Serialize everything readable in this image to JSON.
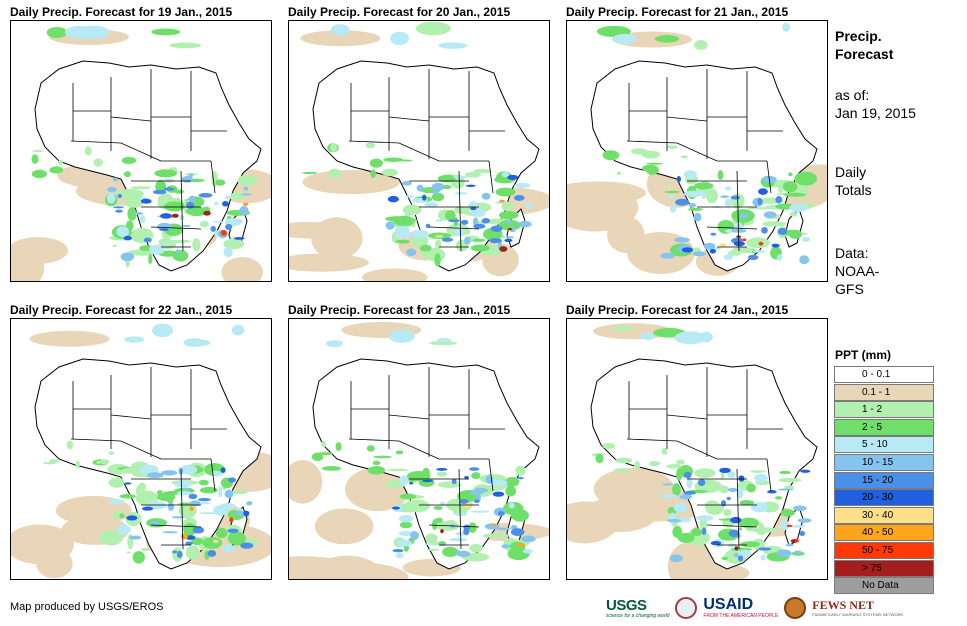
{
  "panels": [
    {
      "title": "Daily Precip. Forecast for 19 Jan., 2015"
    },
    {
      "title": "Daily Precip. Forecast for 20 Jan., 2015"
    },
    {
      "title": "Daily Precip. Forecast for 21 Jan., 2015"
    },
    {
      "title": "Daily Precip. Forecast for 22 Jan., 2015"
    },
    {
      "title": "Daily Precip. Forecast for 23 Jan., 2015"
    },
    {
      "title": "Daily Precip. Forecast for 24 Jan., 2015"
    }
  ],
  "sidebar": {
    "heading1": "Precip.",
    "heading2": "Forecast",
    "asof1": "as of:",
    "asof2": "Jan 19, 2015",
    "totals1": "Daily",
    "totals2": "Totals",
    "data1": "Data:",
    "data2": "NOAA-",
    "data3": "GFS"
  },
  "legend": {
    "title": "PPT (mm)",
    "items": [
      {
        "label": "0 - 0.1",
        "color": "#ffffff"
      },
      {
        "label": "0.1 - 1",
        "color": "#e9d6b8"
      },
      {
        "label": "1 - 2",
        "color": "#b2f0b0"
      },
      {
        "label": "2 - 5",
        "color": "#6ee06a"
      },
      {
        "label": "5 - 10",
        "color": "#b8eaf6"
      },
      {
        "label": "10 - 15",
        "color": "#85c4ee"
      },
      {
        "label": "15 - 20",
        "color": "#4a8fe8"
      },
      {
        "label": "20 - 30",
        "color": "#1f5fe0"
      },
      {
        "label": "30 - 40",
        "color": "#ffe08a"
      },
      {
        "label": "40 - 50",
        "color": "#ffa51c"
      },
      {
        "label": "50 - 75",
        "color": "#ff3a08"
      },
      {
        "label": "> 75",
        "color": "#a51d1d"
      },
      {
        "label": "No Data",
        "color": "#9e9e9e"
      }
    ]
  },
  "credit": "Map produced by USGS/EROS",
  "logos": {
    "usgs": "USGS",
    "usgs_tag": "science for a changing world",
    "usaid": "USAID",
    "usaid_tag": "FROM THE AMERICAN PEOPLE",
    "fews": "FEWS NET",
    "fews_tag": "FAMINE EARLY WARNING SYSTEMS NETWORK"
  }
}
